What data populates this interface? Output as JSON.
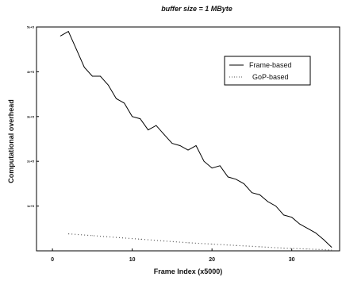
{
  "chart_data": {
    "type": "line",
    "title": "buffer size = 1 MByte",
    "xlabel": "Frame Index (x5000)",
    "ylabel": "Computational overhead",
    "xlim": [
      -2,
      36
    ],
    "ylim": [
      0,
      5
    ],
    "xticks": [
      0,
      10,
      20,
      30
    ],
    "yticks": [
      1,
      2,
      3,
      4,
      5
    ],
    "ytick_labels": [
      "1e+5",
      "2e+5",
      "3e+5",
      "4e+5",
      "5e+5"
    ],
    "grid": false,
    "legend_position": "top-right",
    "series": [
      {
        "name": "Frame-based",
        "style": "solid",
        "color": "#000000",
        "x": [
          1,
          2,
          3,
          4,
          5,
          6,
          7,
          8,
          9,
          10,
          11,
          12,
          13,
          14,
          15,
          16,
          17,
          18,
          19,
          20,
          21,
          22,
          23,
          24,
          25,
          26,
          27,
          28,
          29,
          30,
          31,
          32,
          33,
          34,
          35
        ],
        "y": [
          4.8,
          4.9,
          4.5,
          4.1,
          3.9,
          3.9,
          3.7,
          3.4,
          3.3,
          3.0,
          2.95,
          2.7,
          2.8,
          2.6,
          2.4,
          2.35,
          2.25,
          2.35,
          2.0,
          1.85,
          1.9,
          1.65,
          1.6,
          1.5,
          1.3,
          1.25,
          1.1,
          1.0,
          0.8,
          0.75,
          0.6,
          0.5,
          0.4,
          0.25,
          0.08
        ]
      },
      {
        "name": "GoP-based",
        "style": "dotted",
        "color": "#555555",
        "x": [
          2,
          5,
          8,
          11,
          14,
          17,
          20,
          23,
          26,
          29,
          32,
          35
        ],
        "y": [
          0.38,
          0.34,
          0.3,
          0.26,
          0.22,
          0.18,
          0.15,
          0.12,
          0.09,
          0.06,
          0.04,
          0.02
        ]
      }
    ]
  }
}
